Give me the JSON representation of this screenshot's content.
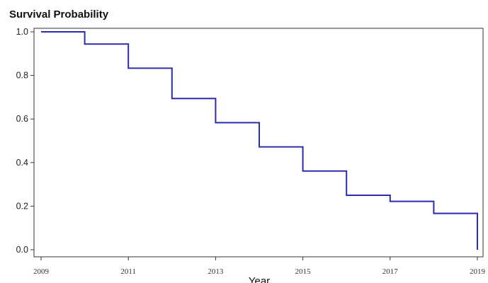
{
  "chart_data": {
    "type": "line",
    "step": true,
    "title": "",
    "ylabel": "Survival Probability",
    "xlabel": "Year",
    "xlim": [
      2009,
      2019
    ],
    "ylim": [
      0.0,
      1.0
    ],
    "y_ticks": [
      0.0,
      0.2,
      0.4,
      0.6,
      0.8,
      1.0
    ],
    "y_tick_labels": [
      "0.0",
      "0.2",
      "0.4",
      "0.6",
      "0.8",
      "1.0"
    ],
    "x_ticks": [
      2009,
      2011,
      2013,
      2015,
      2017,
      2019
    ],
    "x_tick_labels": [
      "2009",
      "2011",
      "2013",
      "2015",
      "2017",
      "2019"
    ],
    "grid": false,
    "series": [
      {
        "color": "#2b2bb0",
        "x": [
          2009,
          2010,
          2011,
          2012,
          2013,
          2014,
          2015,
          2016,
          2017,
          2018,
          2019,
          2019
        ],
        "y": [
          1.0,
          0.944,
          0.833,
          0.694,
          0.583,
          0.472,
          0.361,
          0.25,
          0.222,
          0.167,
          0.167,
          0.0
        ]
      }
    ]
  }
}
